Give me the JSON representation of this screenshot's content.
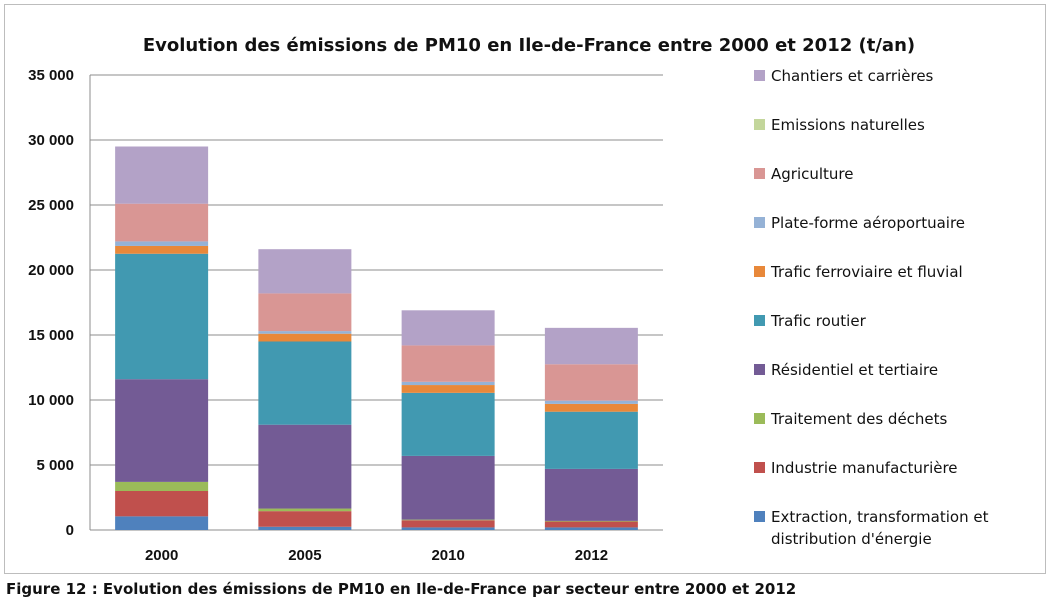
{
  "chart_data": {
    "type": "bar",
    "stacked": true,
    "title": "Evolution des émissions de PM10 en Ile-de-France entre 2000 et 2012  (t/an)",
    "xlabel": "",
    "ylabel": "",
    "categories": [
      "2000",
      "2005",
      "2010",
      "2012"
    ],
    "ylim": [
      0,
      35000
    ],
    "yticks": [
      0,
      5000,
      10000,
      15000,
      20000,
      25000,
      30000,
      35000
    ],
    "ytick_labels": [
      "0",
      "5 000",
      "10 000",
      "15 000",
      "20 000",
      "25 000",
      "30 000",
      "35 000"
    ],
    "grid": true,
    "legend_position": "right",
    "series": [
      {
        "name": "Extraction, transformation et distribution d'énergie",
        "color": "#4f81bd",
        "values": [
          1050,
          250,
          200,
          200
        ]
      },
      {
        "name": "Industrie manufacturière",
        "color": "#c0504d",
        "values": [
          1950,
          1200,
          550,
          450
        ]
      },
      {
        "name": "Traitement des déchets",
        "color": "#9bbb59",
        "values": [
          700,
          200,
          50,
          50
        ]
      },
      {
        "name": "Résidentiel et tertiaire",
        "color": "#735b95",
        "values": [
          7900,
          6450,
          4900,
          4000
        ]
      },
      {
        "name": "Trafic routier",
        "color": "#4199b1",
        "values": [
          9650,
          6400,
          4850,
          4400
        ]
      },
      {
        "name": "Trafic ferroviaire et fluvial",
        "color": "#e8883a",
        "values": [
          600,
          600,
          600,
          600
        ]
      },
      {
        "name": "Plate-forme aéroportuaire",
        "color": "#95b2d6",
        "values": [
          350,
          200,
          250,
          250
        ]
      },
      {
        "name": "Agriculture",
        "color": "#d99694",
        "values": [
          2900,
          2900,
          2800,
          2800
        ]
      },
      {
        "name": "Emissions naturelles",
        "color": "#c3d69b",
        "values": [
          0,
          0,
          0,
          0
        ]
      },
      {
        "name": "Chantiers et carrières",
        "color": "#b3a2c7",
        "values": [
          4400,
          3400,
          2700,
          2800
        ]
      }
    ],
    "legend_order": [
      9,
      8,
      7,
      6,
      5,
      4,
      3,
      2,
      1,
      0
    ]
  },
  "caption": "Figure 12 : Evolution des émissions de PM10 en Ile-de-France par secteur entre 2000 et 2012"
}
